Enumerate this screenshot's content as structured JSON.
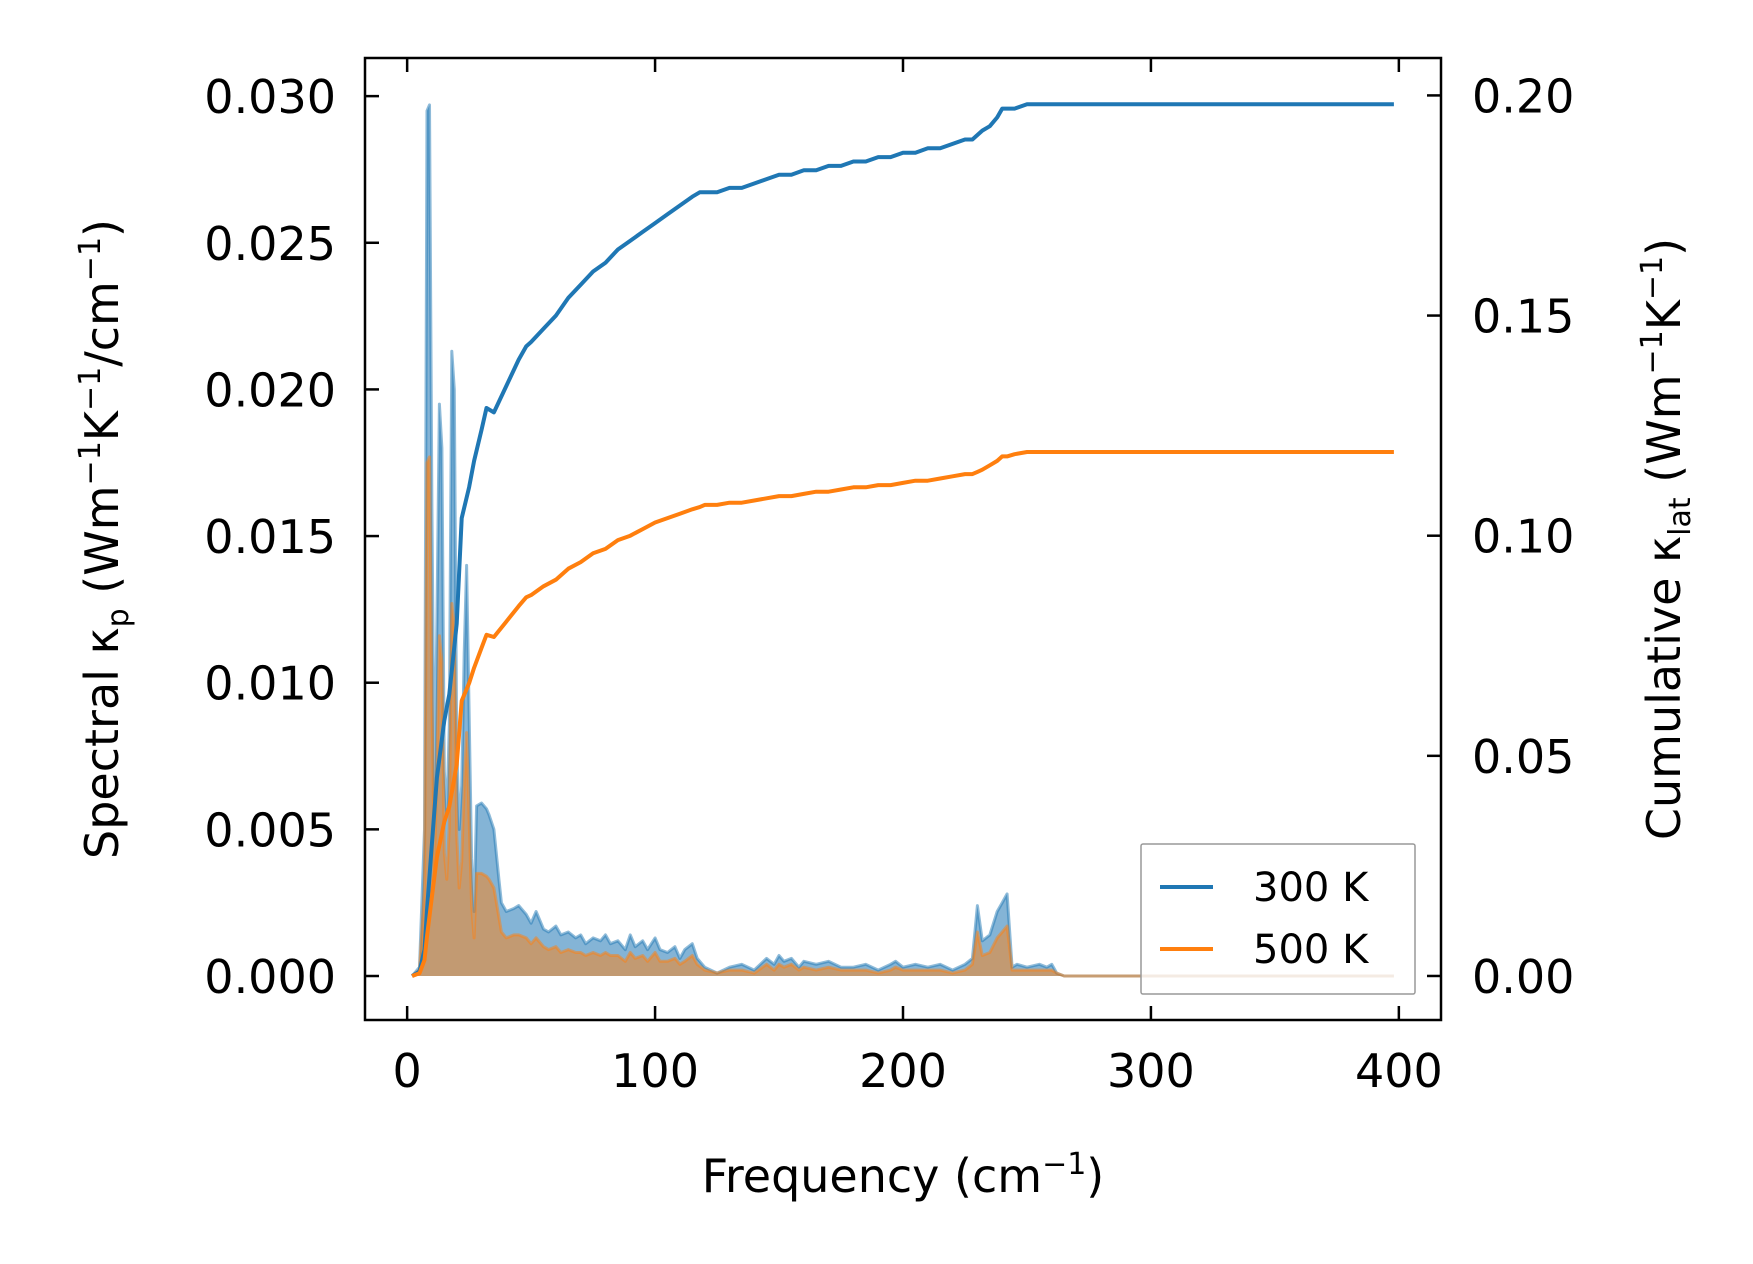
{
  "chart_data": {
    "type": "line",
    "xlabel": {
      "text": "Frequency (cm",
      "sup": "−1",
      "tail": ")"
    },
    "ylabel_left": {
      "a": "Spectral κ",
      "sub": "p",
      "b": " (Wm",
      "sup1": "−1",
      "c": "K",
      "sup2": "−1",
      "d": "/cm",
      "sup3": "−1",
      "e": ")"
    },
    "ylabel_right": {
      "a": "Cumulative κ",
      "sub": "lat",
      "b": " (Wm",
      "sup1": "−1",
      "c": "K",
      "sup2": "−1",
      "d": ")"
    },
    "xlim": [
      -17,
      417
    ],
    "ylim_left": [
      -0.0015,
      0.0313
    ],
    "ylim_right": [
      -0.01,
      0.2085
    ],
    "xticks": [
      0,
      100,
      200,
      300,
      400
    ],
    "xtick_labels": [
      "0",
      "100",
      "200",
      "300",
      "400"
    ],
    "yticks_left": [
      0.0,
      0.005,
      0.01,
      0.015,
      0.02,
      0.025,
      0.03
    ],
    "ytick_labels_left": [
      "0.000",
      "0.005",
      "0.010",
      "0.015",
      "0.020",
      "0.025",
      "0.030"
    ],
    "yticks_right": [
      0.0,
      0.05,
      0.1,
      0.15,
      0.2
    ],
    "ytick_labels_right": [
      "0.00",
      "0.05",
      "0.10",
      "0.15",
      "0.20"
    ],
    "legend": {
      "position": "lower-right"
    },
    "colors": {
      "blue": "#1f77b4",
      "orange": "#ff7f0e"
    },
    "series": [
      {
        "name": "300 K",
        "spectral": {
          "x": [
            2,
            5,
            7,
            8,
            9,
            10,
            11,
            12,
            13,
            14,
            15,
            16,
            17,
            18,
            19,
            20,
            21,
            22,
            23,
            24,
            25,
            26,
            27,
            28,
            30,
            32,
            33,
            35,
            37,
            38,
            40,
            43,
            45,
            48,
            50,
            52,
            55,
            57,
            60,
            62,
            65,
            68,
            70,
            72,
            75,
            78,
            80,
            82,
            85,
            88,
            90,
            92,
            95,
            97,
            100,
            102,
            105,
            108,
            110,
            112,
            115,
            117,
            120,
            125,
            130,
            135,
            140,
            145,
            148,
            150,
            152,
            155,
            158,
            160,
            165,
            170,
            175,
            180,
            185,
            190,
            195,
            197,
            200,
            205,
            210,
            215,
            220,
            225,
            228,
            230,
            232,
            235,
            238,
            240,
            242,
            244,
            246,
            250,
            255,
            258,
            260,
            262,
            265,
            300,
            350,
            398
          ],
          "y": [
            0.0,
            0.0003,
            0.005,
            0.0295,
            0.0297,
            0.016,
            0.006,
            0.012,
            0.0195,
            0.018,
            0.007,
            0.0055,
            0.0085,
            0.0213,
            0.02,
            0.008,
            0.005,
            0.0065,
            0.011,
            0.014,
            0.009,
            0.004,
            0.0022,
            0.0058,
            0.0059,
            0.0057,
            0.0055,
            0.005,
            0.0033,
            0.0025,
            0.0022,
            0.0023,
            0.0024,
            0.0021,
            0.0018,
            0.0022,
            0.0016,
            0.0015,
            0.0017,
            0.0014,
            0.0015,
            0.0013,
            0.0014,
            0.0011,
            0.0013,
            0.0012,
            0.0014,
            0.0011,
            0.0012,
            0.0009,
            0.0014,
            0.001,
            0.0012,
            0.0009,
            0.0013,
            0.0009,
            0.0008,
            0.001,
            0.0006,
            0.0009,
            0.0011,
            0.0006,
            0.0003,
            0.0001,
            0.0003,
            0.0004,
            0.0002,
            0.0006,
            0.0004,
            0.0007,
            0.0005,
            0.0006,
            0.0003,
            0.0005,
            0.0004,
            0.0005,
            0.0003,
            0.0003,
            0.0004,
            0.0002,
            0.0004,
            0.0005,
            0.0003,
            0.0004,
            0.0003,
            0.0004,
            0.0002,
            0.0004,
            0.0006,
            0.0024,
            0.0012,
            0.0014,
            0.0022,
            0.0025,
            0.0028,
            0.0003,
            0.0004,
            0.0003,
            0.0004,
            0.0003,
            0.0004,
            0.0001,
            0.0,
            0.0,
            0.0,
            0.0
          ]
        },
        "cumulative": {
          "x": [
            2,
            5,
            7,
            8,
            10,
            12,
            15,
            17,
            20,
            22,
            25,
            27,
            30,
            32,
            35,
            40,
            45,
            48,
            50,
            55,
            60,
            65,
            70,
            75,
            80,
            85,
            90,
            95,
            100,
            105,
            110,
            115,
            118,
            120,
            125,
            130,
            135,
            140,
            145,
            150,
            155,
            160,
            165,
            170,
            175,
            180,
            185,
            190,
            195,
            200,
            205,
            210,
            215,
            220,
            225,
            228,
            230,
            232,
            235,
            238,
            240,
            242,
            245,
            250,
            255,
            258,
            260,
            300,
            350,
            398
          ],
          "y": [
            0.0,
            0.001,
            0.006,
            0.015,
            0.03,
            0.045,
            0.058,
            0.064,
            0.08,
            0.104,
            0.111,
            0.117,
            0.124,
            0.129,
            0.128,
            0.134,
            0.14,
            0.143,
            0.144,
            0.147,
            0.15,
            0.154,
            0.157,
            0.16,
            0.162,
            0.165,
            0.167,
            0.169,
            0.171,
            0.173,
            0.175,
            0.177,
            0.178,
            0.178,
            0.178,
            0.179,
            0.179,
            0.18,
            0.181,
            0.182,
            0.182,
            0.183,
            0.183,
            0.184,
            0.184,
            0.185,
            0.185,
            0.186,
            0.186,
            0.187,
            0.187,
            0.188,
            0.188,
            0.189,
            0.19,
            0.19,
            0.191,
            0.192,
            0.193,
            0.195,
            0.197,
            0.197,
            0.197,
            0.198,
            0.198,
            0.198,
            0.198,
            0.198,
            0.198,
            0.198
          ]
        }
      },
      {
        "name": "500 K",
        "spectral": {
          "x": [
            2,
            5,
            7,
            8,
            9,
            10,
            11,
            12,
            13,
            14,
            15,
            16,
            17,
            18,
            19,
            20,
            21,
            22,
            23,
            24,
            25,
            26,
            27,
            28,
            30,
            32,
            33,
            35,
            37,
            38,
            40,
            43,
            45,
            48,
            50,
            52,
            55,
            57,
            60,
            62,
            65,
            68,
            70,
            72,
            75,
            78,
            80,
            82,
            85,
            88,
            90,
            92,
            95,
            97,
            100,
            102,
            105,
            108,
            110,
            112,
            115,
            117,
            120,
            125,
            130,
            135,
            140,
            145,
            148,
            150,
            152,
            155,
            158,
            160,
            165,
            170,
            175,
            180,
            185,
            190,
            195,
            197,
            200,
            205,
            210,
            215,
            220,
            225,
            228,
            230,
            232,
            235,
            238,
            240,
            242,
            244,
            246,
            250,
            255,
            258,
            260,
            262,
            265,
            300,
            350,
            398
          ],
          "y": [
            0.0,
            0.0002,
            0.003,
            0.0175,
            0.0177,
            0.0095,
            0.0036,
            0.0071,
            0.0116,
            0.0107,
            0.0042,
            0.0033,
            0.0051,
            0.0127,
            0.0119,
            0.0048,
            0.003,
            0.0039,
            0.0065,
            0.0083,
            0.0054,
            0.0024,
            0.0013,
            0.0035,
            0.0035,
            0.0034,
            0.0033,
            0.003,
            0.002,
            0.0015,
            0.0013,
            0.0014,
            0.0014,
            0.0013,
            0.0011,
            0.0013,
            0.001,
            0.0009,
            0.001,
            0.0008,
            0.0009,
            0.0008,
            0.0008,
            0.0007,
            0.0008,
            0.0007,
            0.0008,
            0.0007,
            0.0007,
            0.0005,
            0.0008,
            0.0006,
            0.0007,
            0.0005,
            0.0008,
            0.0005,
            0.0005,
            0.0006,
            0.0004,
            0.0005,
            0.0007,
            0.0004,
            0.0002,
            0.0001,
            0.0002,
            0.0002,
            0.0001,
            0.0004,
            0.0002,
            0.0004,
            0.0003,
            0.0004,
            0.0002,
            0.0003,
            0.0002,
            0.0003,
            0.0002,
            0.0002,
            0.0002,
            0.0001,
            0.0002,
            0.0003,
            0.0002,
            0.0002,
            0.0002,
            0.0002,
            0.0001,
            0.0002,
            0.0004,
            0.0015,
            0.0007,
            0.0008,
            0.0013,
            0.0015,
            0.0017,
            0.0002,
            0.0002,
            0.0002,
            0.0002,
            0.0002,
            0.0002,
            0.0001,
            0.0,
            0.0,
            0.0,
            0.0
          ]
        },
        "cumulative": {
          "x": [
            2,
            5,
            7,
            8,
            10,
            12,
            15,
            17,
            20,
            22,
            25,
            27,
            30,
            32,
            35,
            40,
            45,
            48,
            50,
            55,
            60,
            65,
            70,
            75,
            80,
            85,
            90,
            95,
            100,
            105,
            110,
            115,
            118,
            120,
            125,
            130,
            135,
            140,
            145,
            150,
            155,
            160,
            165,
            170,
            175,
            180,
            185,
            190,
            195,
            200,
            205,
            210,
            215,
            220,
            225,
            228,
            230,
            232,
            235,
            238,
            240,
            242,
            245,
            250,
            255,
            258,
            260,
            300,
            350,
            398
          ],
          "y": [
            0.0,
            0.0006,
            0.0036,
            0.009,
            0.018,
            0.027,
            0.035,
            0.0385,
            0.048,
            0.0625,
            0.0665,
            0.07,
            0.0745,
            0.0775,
            0.077,
            0.0805,
            0.084,
            0.086,
            0.0865,
            0.0885,
            0.09,
            0.0925,
            0.094,
            0.096,
            0.097,
            0.099,
            0.1,
            0.1015,
            0.103,
            0.104,
            0.105,
            0.106,
            0.1065,
            0.107,
            0.107,
            0.1075,
            0.1075,
            0.108,
            0.1085,
            0.109,
            0.109,
            0.1095,
            0.11,
            0.11,
            0.1105,
            0.111,
            0.111,
            0.1115,
            0.1115,
            0.112,
            0.1125,
            0.1125,
            0.113,
            0.1135,
            0.114,
            0.114,
            0.1145,
            0.115,
            0.116,
            0.117,
            0.118,
            0.118,
            0.1185,
            0.119,
            0.119,
            0.119,
            0.119,
            0.119,
            0.119,
            0.119
          ]
        }
      }
    ]
  }
}
